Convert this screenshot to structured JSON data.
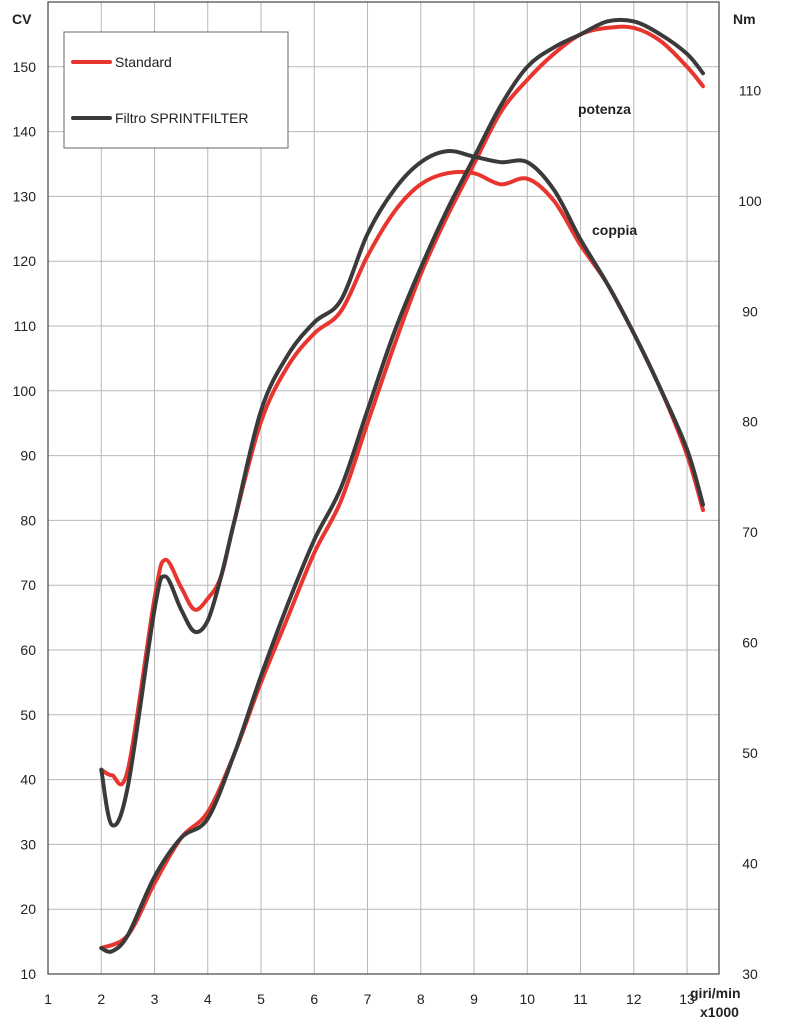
{
  "chart_data": {
    "type": "line",
    "y_left_label": "CV",
    "y_right_label": "Nm",
    "x_label_line1": "giri/min",
    "x_label_line2": "x1000",
    "xlim": [
      1,
      13.6
    ],
    "ylim_left": [
      10,
      160
    ],
    "ylim_right": [
      30,
      118
    ],
    "x_ticks": [
      1,
      2,
      3,
      4,
      5,
      6,
      7,
      8,
      9,
      10,
      11,
      12,
      13
    ],
    "y_left_ticks": [
      10,
      20,
      30,
      40,
      50,
      60,
      70,
      80,
      90,
      100,
      110,
      120,
      130,
      140,
      150
    ],
    "y_right_ticks": [
      30,
      40,
      50,
      60,
      70,
      80,
      90,
      100,
      110
    ],
    "grid": true,
    "legend_position": "top-left",
    "legend": [
      {
        "name": "Standard",
        "color": "#e8352e"
      },
      {
        "name": "Filtro SPRINTFILTER",
        "color": "#3a3a3a"
      }
    ],
    "annotations": [
      "potenza",
      "coppia"
    ],
    "series": [
      {
        "name": "Standard",
        "curve": "potenza",
        "axis": "left",
        "color": "#e8352e",
        "x": [
          2,
          2.5,
          3,
          3.5,
          4,
          4.5,
          5,
          5.5,
          6,
          6.5,
          7,
          7.5,
          8,
          8.5,
          9,
          9.5,
          10,
          10.5,
          11,
          11.5,
          12,
          12.5,
          13,
          13.3
        ],
        "y": [
          14,
          16,
          24,
          31,
          35,
          44,
          55,
          65,
          75,
          83,
          95,
          107,
          118,
          127,
          135,
          143,
          148,
          152,
          155,
          156,
          156,
          154,
          150,
          147
        ]
      },
      {
        "name": "Filtro SPRINTFILTER",
        "curve": "potenza",
        "axis": "left",
        "color": "#3a3a3a",
        "x": [
          2,
          2.2,
          2.5,
          3,
          3.5,
          4,
          4.5,
          5,
          5.5,
          6,
          6.5,
          7,
          7.5,
          8,
          8.5,
          9,
          9.5,
          10,
          10.5,
          11,
          11.5,
          12,
          12.5,
          13,
          13.3
        ],
        "y": [
          14,
          13.5,
          16,
          25,
          31,
          34,
          44,
          56,
          67,
          77,
          85,
          97,
          109,
          119,
          128,
          136,
          144,
          150,
          153,
          155,
          157,
          157,
          155,
          152,
          149
        ]
      },
      {
        "name": "Standard",
        "curve": "coppia",
        "axis": "right",
        "color": "#e8352e",
        "x": [
          2,
          2.2,
          2.5,
          3,
          3.2,
          3.5,
          3.75,
          4,
          4.25,
          4.5,
          5,
          5.5,
          6,
          6.5,
          7,
          7.5,
          8,
          8.5,
          9,
          9.5,
          10,
          10.5,
          11,
          11.5,
          12,
          12.5,
          13,
          13.3
        ],
        "y": [
          48.5,
          48,
          48.5,
          64,
          67.5,
          65,
          63,
          64,
          66,
          71,
          80,
          85,
          88,
          90,
          95,
          99,
          101.5,
          102.5,
          102.5,
          101.5,
          102,
          100,
          96,
          92.5,
          88,
          83,
          77,
          72
        ]
      },
      {
        "name": "Filtro SPRINTFILTER",
        "curve": "coppia",
        "axis": "right",
        "color": "#3a3a3a",
        "x": [
          2,
          2.2,
          2.5,
          3,
          3.2,
          3.5,
          3.75,
          4,
          4.25,
          4.5,
          5,
          5.5,
          6,
          6.5,
          7,
          7.5,
          8,
          8.5,
          9,
          9.5,
          10,
          10.5,
          11,
          11.5,
          12,
          12.5,
          13,
          13.3
        ],
        "y": [
          48.5,
          43.5,
          47,
          63,
          66,
          63,
          61,
          62,
          66,
          71,
          81,
          86,
          89,
          91,
          97,
          101,
          103.5,
          104.5,
          104,
          103.5,
          103.5,
          101,
          96.5,
          92.5,
          88,
          83,
          77.5,
          72.5
        ]
      }
    ]
  }
}
